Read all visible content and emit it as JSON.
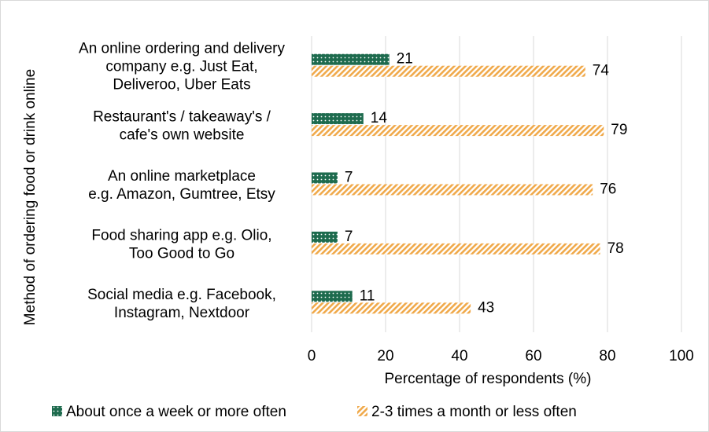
{
  "chart_data": {
    "type": "bar",
    "orientation": "horizontal",
    "categories": [
      [
        "An online ordering and delivery",
        "company e.g. Just Eat,",
        "Deliveroo, Uber Eats"
      ],
      [
        "Restaurant's / takeaway's /",
        "cafe's own website"
      ],
      [
        "An online marketplace",
        "e.g. Amazon, Gumtree, Etsy"
      ],
      [
        "Food sharing app e.g. Olio,",
        "Too Good to Go"
      ],
      [
        "Social media e.g. Facebook,",
        "Instagram, Nextdoor"
      ]
    ],
    "series": [
      {
        "name": "About once a week or more often",
        "values": [
          21,
          14,
          7,
          7,
          11
        ],
        "color": "#1e6b4e",
        "pattern": "dots"
      },
      {
        "name": "2-3 times a month or less often",
        "values": [
          74,
          79,
          76,
          78,
          43
        ],
        "color": "#f0a94a",
        "pattern": "diagonal-stripes"
      }
    ],
    "xlabel": "Percentage of respondents (%)",
    "ylabel": "Method of ordering food or drink online",
    "xlim": [
      0,
      100
    ],
    "xticks": [
      0,
      20,
      40,
      60,
      80,
      100
    ],
    "grid": true,
    "legend_position": "bottom"
  }
}
